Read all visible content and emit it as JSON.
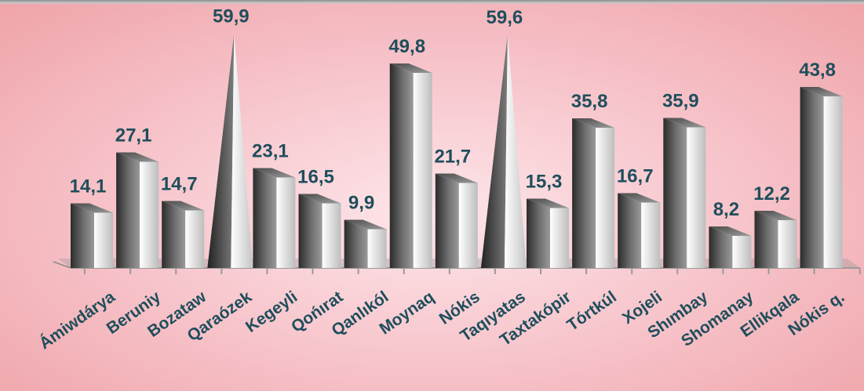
{
  "chart_data": {
    "type": "bar",
    "categories": [
      "Ámiwdárya",
      "Beruniy",
      "Bozataw",
      "Qaraózek",
      "Kegeyli",
      "Qońırat",
      "Qanlıkól",
      "Moynaq",
      "Nókis",
      "Taqıyatas",
      "Taxtakópir",
      "Tórtkúl",
      "Xojeli",
      "Shımbay",
      "Shomanay",
      "Ellikqala",
      "Nókis q."
    ],
    "values": [
      14.1,
      27.1,
      14.7,
      59.9,
      23.1,
      16.5,
      9.9,
      49.8,
      21.7,
      59.6,
      15.3,
      35.8,
      16.7,
      35.9,
      8.2,
      12.2,
      43.8
    ],
    "value_labels": [
      "14,1",
      "27,1",
      "14,7",
      "59,9",
      "23,1",
      "16,5",
      "9,9",
      "49,8",
      "21,7",
      "59,6",
      "15,3",
      "35,8",
      "16,7",
      "35,9",
      "8,2",
      "12,2",
      "43,8"
    ],
    "bar_shapes": [
      "block",
      "block",
      "block",
      "pyramid",
      "block",
      "block",
      "block",
      "block",
      "block",
      "pyramid",
      "block",
      "block",
      "block",
      "block",
      "block",
      "block",
      "block"
    ],
    "title": "",
    "xlabel": "",
    "ylabel": "",
    "ylim": [
      0,
      60
    ],
    "grid": false,
    "legend": "none",
    "style": "3d-column"
  },
  "colors": {
    "label_text": "#1f4e5c",
    "bar_dark": "#3a3a3a",
    "bar_light": "#f2f2f2",
    "background": "#f7c6cc"
  }
}
